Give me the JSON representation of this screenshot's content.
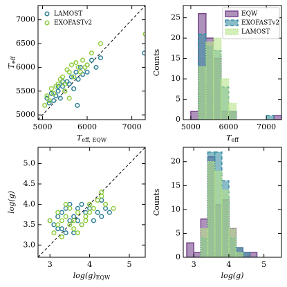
{
  "chart_data": [
    {
      "type": "scatter",
      "xlabel": {
        "text": "T",
        "sub": "eff, EQW"
      },
      "ylabel": {
        "text": "T",
        "sub": "eff"
      },
      "xlim": [
        4900,
        7300
      ],
      "ylim": [
        4900,
        7300
      ],
      "xticks": [
        5000,
        6000,
        7000
      ],
      "yticks": [
        5000,
        5500,
        6000,
        6500,
        7000
      ],
      "identity_line": true,
      "legend": "upper left",
      "series": [
        {
          "name": "LAMOST",
          "color": "#2b7f97",
          "x": [
            5100,
            5150,
            5200,
            5250,
            5300,
            5350,
            5400,
            5450,
            5500,
            5550,
            5600,
            5650,
            5700,
            5750,
            5800,
            5850,
            5900,
            6000,
            6100,
            6200,
            6300,
            5780,
            5350,
            5450,
            7280
          ],
          "values": [
            5350,
            5250,
            5450,
            5300,
            5400,
            5500,
            5350,
            5600,
            5500,
            5700,
            5650,
            5800,
            5550,
            5900,
            5750,
            6000,
            5850,
            5900,
            6150,
            6000,
            6200,
            5200,
            5600,
            5700,
            6300
          ]
        },
        {
          "name": "EXOFASTv2",
          "color": "#8fcc3b",
          "x": [
            5050,
            5100,
            5150,
            5200,
            5250,
            5300,
            5350,
            5400,
            5450,
            5500,
            5550,
            5600,
            5650,
            5700,
            5750,
            5800,
            5850,
            5900,
            5950,
            6000,
            6100,
            6300,
            7300,
            5500,
            5600
          ],
          "values": [
            5200,
            5400,
            5300,
            5550,
            5450,
            5600,
            5650,
            5750,
            5800,
            5650,
            5950,
            5900,
            6050,
            5800,
            6100,
            6000,
            5900,
            6150,
            6000,
            6050,
            6300,
            6500,
            6700,
            5500,
            5350
          ]
        }
      ]
    },
    {
      "type": "histogram",
      "xlabel": {
        "text": "T",
        "sub": "eff"
      },
      "ylabel": "Counts",
      "xlim": [
        4800,
        7400
      ],
      "ylim": [
        0,
        28
      ],
      "xticks": [
        5000,
        6000,
        7000
      ],
      "yticks": [
        0,
        5,
        10,
        15,
        20,
        25
      ],
      "legend": "upper right",
      "bins": [
        5000,
        5200,
        5400,
        5600,
        5800,
        6000,
        6200,
        6400,
        6600,
        6800,
        7000,
        7200,
        7400
      ],
      "series": [
        {
          "name": "EQW",
          "color": "#7a4a8e",
          "linestyle": "solid",
          "values": [
            2,
            26,
            20,
            15,
            2,
            2,
            0,
            0,
            0,
            0,
            0,
            1
          ]
        },
        {
          "name": "EXOFASTv2",
          "color": "#3b90a3",
          "linestyle": "dashed",
          "values": [
            0,
            21,
            18,
            17,
            8,
            2,
            0,
            0,
            0,
            0,
            1,
            0
          ]
        },
        {
          "name": "LAMOST",
          "color": "#b7e28a",
          "linestyle": "dotted",
          "values": [
            0,
            13,
            19,
            20,
            10,
            4,
            0,
            0,
            0,
            0,
            0,
            0
          ]
        }
      ]
    },
    {
      "type": "scatter",
      "xlabel": {
        "text": "log(g)",
        "sub": "EQW"
      },
      "ylabel": "log(g)",
      "xlim": [
        2.7,
        5.4
      ],
      "ylim": [
        2.7,
        5.4
      ],
      "xticks": [
        3,
        4,
        5
      ],
      "yticks": [
        {
          "value": 3,
          "label": "3.0"
        },
        3.5,
        {
          "value": 4,
          "label": "4.0"
        },
        4.5,
        {
          "value": 5,
          "label": "5.0"
        }
      ],
      "identity_line": true,
      "series": [
        {
          "name": "LAMOST",
          "color": "#2b7f97",
          "x": [
            3.0,
            3.1,
            3.2,
            3.3,
            3.3,
            3.4,
            3.5,
            3.5,
            3.6,
            3.7,
            3.8,
            3.9,
            4.0,
            4.1,
            4.2,
            4.3,
            4.4,
            4.5,
            3.6,
            3.8,
            4.0,
            4.3,
            3.4,
            3.2,
            3.7
          ],
          "values": [
            3.6,
            3.5,
            3.7,
            3.8,
            3.4,
            3.9,
            3.6,
            4.0,
            3.7,
            3.9,
            4.0,
            3.8,
            3.9,
            3.6,
            3.8,
            3.7,
            3.9,
            3.8,
            3.3,
            3.5,
            4.0,
            4.1,
            3.3,
            3.4,
            3.6
          ]
        },
        {
          "name": "EXOFASTv2",
          "color": "#8fcc3b",
          "x": [
            3.0,
            3.1,
            3.2,
            3.3,
            3.4,
            3.5,
            3.5,
            3.6,
            3.7,
            3.8,
            3.9,
            4.0,
            4.1,
            4.2,
            4.3,
            4.3,
            4.4,
            4.6,
            3.3,
            3.6,
            3.9,
            3.4,
            4.0,
            3.7,
            3.2
          ],
          "values": [
            3.6,
            3.3,
            3.5,
            3.6,
            3.7,
            3.5,
            3.9,
            3.6,
            3.8,
            3.5,
            3.7,
            4.0,
            3.9,
            4.1,
            4.2,
            4.3,
            4.0,
            3.9,
            3.2,
            3.4,
            3.6,
            4.0,
            3.8,
            3.3,
            3.8
          ]
        }
      ]
    },
    {
      "type": "histogram",
      "xlabel": "log(g)",
      "ylabel": "Counts",
      "xlim": [
        2.7,
        5.5
      ],
      "ylim": [
        0,
        23
      ],
      "xticks": [
        3,
        4,
        5
      ],
      "yticks": [
        0,
        5,
        10,
        15,
        20
      ],
      "bins": [
        2.8,
        3.0,
        3.2,
        3.4,
        3.6,
        3.8,
        4.0,
        4.2,
        4.4,
        4.6,
        4.8
      ],
      "series": [
        {
          "name": "EQW",
          "color": "#7a4a8e",
          "linestyle": "solid",
          "values": [
            3,
            1,
            8,
            21,
            11,
            12,
            6,
            2,
            1,
            1
          ]
        },
        {
          "name": "EXOFASTv2",
          "color": "#3b90a3",
          "linestyle": "dashed",
          "values": [
            0,
            0,
            4,
            22,
            22,
            16,
            4,
            2,
            1,
            0
          ]
        },
        {
          "name": "LAMOST",
          "color": "#b7e28a",
          "linestyle": "dotted",
          "values": [
            0,
            0,
            6,
            20,
            18,
            14,
            6,
            1,
            0,
            0
          ]
        }
      ]
    }
  ]
}
